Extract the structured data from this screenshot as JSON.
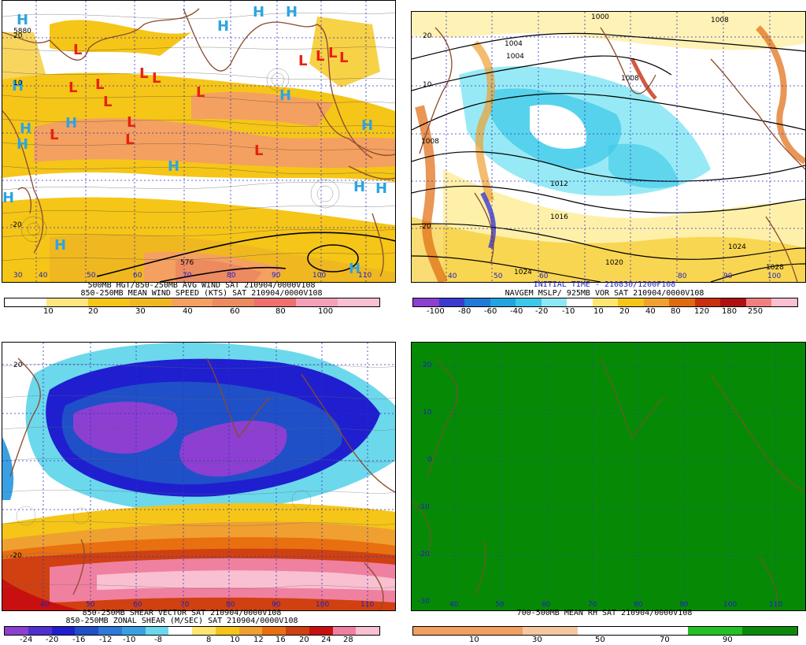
{
  "panels": {
    "p1": {
      "caption1": "500MB HGT/850-250MB AVG WIND SAT 210904/0000V108",
      "caption2": "850-250MB MEAN WIND SPEED (KTS) SAT 210904/0000V108",
      "map_labels": [
        "5880",
        "576"
      ],
      "colorbar": {
        "colors": [
          "#ffffff",
          "#ffe680",
          "#f5c518",
          "#f0b820",
          "#f4a060",
          "#ec8a60",
          "#f06f6f",
          "#f4a0b8",
          "#f8c0d0"
        ],
        "labels": [
          "10",
          "20",
          "30",
          "40",
          "60",
          "80",
          "100"
        ]
      },
      "lon_labels": [
        "30",
        "40",
        "50",
        "60",
        "70",
        "80",
        "90",
        "100",
        "110"
      ],
      "lat_labels": [
        "20",
        "10",
        "0",
        "-10",
        "-20",
        "-30"
      ],
      "highs": 16,
      "lows": 17
    },
    "p2": {
      "caption1": "INITIAL TIME - 210830/1200F108",
      "caption2": "NAVGEM MSLP/ 925MB VOR SAT 210904/0000V108",
      "contour_labels": [
        "1000",
        "1004",
        "1008",
        "1012",
        "1016",
        "1020",
        "1024",
        "1024",
        "1028",
        "1008",
        "1004",
        "1008"
      ],
      "colorbar": {
        "colors": [
          "#8c3fd0",
          "#3b3bd0",
          "#1f7ad8",
          "#22a4e0",
          "#3cc8e8",
          "#8ce8f4",
          "#ffffff",
          "#ffe670",
          "#f5c518",
          "#f0a030",
          "#e06a10",
          "#c83010",
          "#b01010",
          "#f08080",
          "#f8c0d0"
        ],
        "labels": [
          "-100",
          "-80",
          "-60",
          "-40",
          "-20",
          "-10",
          "10",
          "20",
          "40",
          "80",
          "120",
          "180",
          "250"
        ]
      },
      "lon_labels": [
        "30",
        "40",
        "50",
        "60",
        "70",
        "80",
        "90",
        "100",
        "110"
      ],
      "lat_labels": [
        "20",
        "10",
        "0",
        "-10",
        "-20",
        "-30"
      ]
    },
    "p3": {
      "caption1": "850-250MB SHEAR VECTOR SAT 210904/0000V108",
      "caption2": "850-250MB ZONAL SHEAR (M/SEC) SAT 210904/0000V108",
      "colorbar": {
        "colors": [
          "#8c3fd0",
          "#5030d0",
          "#1f1fd0",
          "#1f50c8",
          "#2d7ad8",
          "#3aa0e4",
          "#6cd8ec",
          "#ffffff",
          "#ffe670",
          "#f5c518",
          "#f0a030",
          "#e87010",
          "#d04010",
          "#c81010",
          "#f080a0",
          "#f8c0d0"
        ],
        "labels": [
          "-24",
          "-20",
          "-16",
          "-12",
          "-10",
          "-8",
          "8",
          "10",
          "12",
          "16",
          "20",
          "24",
          "28"
        ]
      },
      "lon_labels": [
        "40",
        "50",
        "60",
        "70",
        "80",
        "90",
        "100",
        "110"
      ],
      "lat_labels": [
        "20",
        "10",
        "0",
        "-10",
        "-20",
        "-30"
      ]
    },
    "p4": {
      "caption1": "700-500MB MEAN RH SAT 210904/0000V108",
      "colorbar": {
        "colors": [
          "#f0a060",
          "#f0a060",
          "#f6c8a0",
          "#ffffff",
          "#ffffff",
          "#22c022",
          "#0a8a0a"
        ],
        "labels": [
          "10",
          "30",
          "50",
          "70",
          "90"
        ]
      },
      "lon_labels": [
        "40",
        "50",
        "60",
        "70",
        "80",
        "90",
        "100",
        "110"
      ],
      "lat_labels": [
        "20",
        "10",
        "0",
        "-10",
        "-20",
        "-30"
      ],
      "fill_color": "#068a06"
    }
  }
}
